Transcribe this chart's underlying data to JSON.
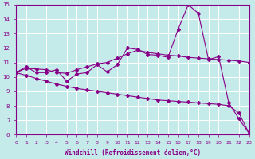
{
  "xlabel": "Windchill (Refroidissement éolien,°C)",
  "background_color": "#c5eaea",
  "line_color": "#880088",
  "grid_color": "#ffffff",
  "xlim": [
    0,
    23
  ],
  "ylim": [
    6,
    15
  ],
  "xticks": [
    0,
    1,
    2,
    3,
    4,
    5,
    6,
    7,
    8,
    9,
    10,
    11,
    12,
    13,
    14,
    15,
    16,
    17,
    18,
    19,
    20,
    21,
    22,
    23
  ],
  "yticks": [
    6,
    7,
    8,
    9,
    10,
    11,
    12,
    13,
    14,
    15
  ],
  "line1_x": [
    0,
    1,
    2,
    3,
    4,
    5,
    6,
    7,
    8,
    9,
    10,
    11,
    12,
    13,
    14,
    15,
    16,
    17,
    18,
    19,
    20,
    21,
    22,
    23
  ],
  "line1_y": [
    10.3,
    10.7,
    10.3,
    10.3,
    10.5,
    9.7,
    10.2,
    10.3,
    10.85,
    10.35,
    10.85,
    12.0,
    11.9,
    11.55,
    11.5,
    11.35,
    13.3,
    15.0,
    14.4,
    11.2,
    11.4,
    8.2,
    7.1,
    6.1
  ],
  "line2_x": [
    0,
    1,
    2,
    3,
    4,
    5,
    6,
    7,
    8,
    9,
    10,
    11,
    12,
    13,
    14,
    15,
    16,
    17,
    18,
    19,
    20,
    21,
    22,
    23
  ],
  "line2_y": [
    10.3,
    10.6,
    10.55,
    10.5,
    10.3,
    10.25,
    10.5,
    10.7,
    10.9,
    11.0,
    11.3,
    11.6,
    11.85,
    11.7,
    11.6,
    11.5,
    11.45,
    11.35,
    11.3,
    11.25,
    11.2,
    11.15,
    11.1,
    11.0
  ],
  "line3_x": [
    0,
    1,
    2,
    3,
    4,
    5,
    6,
    7,
    8,
    9,
    10,
    11,
    12,
    13,
    14,
    15,
    16,
    17,
    18,
    19,
    20,
    21,
    22,
    23
  ],
  "line3_y": [
    10.3,
    10.1,
    9.9,
    9.7,
    9.5,
    9.35,
    9.2,
    9.1,
    9.0,
    8.9,
    8.8,
    8.7,
    8.6,
    8.5,
    8.4,
    8.35,
    8.3,
    8.25,
    8.2,
    8.15,
    8.1,
    8.0,
    7.5,
    6.1
  ]
}
